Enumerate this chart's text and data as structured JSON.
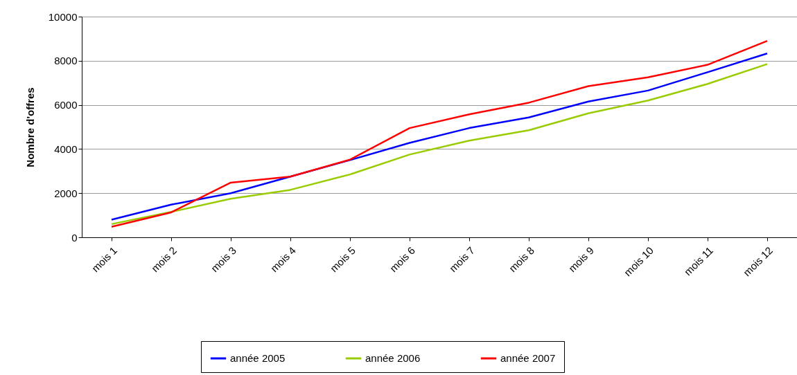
{
  "chart_data": {
    "type": "line",
    "ylabel": "Nombre d'offres",
    "categories": [
      "mois 1",
      "mois 2",
      "mois 3",
      "mois 4",
      "mois 5",
      "mois 6",
      "mois 7",
      "mois 8",
      "mois 9",
      "mois 10",
      "mois 11",
      "mois 12"
    ],
    "series": [
      {
        "name": "année 2005",
        "color": "#0000ff",
        "values": [
          800,
          1480,
          2000,
          2750,
          3500,
          4280,
          4950,
          5430,
          6150,
          6650,
          7480,
          8330
        ]
      },
      {
        "name": "année 2006",
        "color": "#99cc00",
        "values": [
          600,
          1150,
          1750,
          2150,
          2850,
          3750,
          4380,
          4850,
          5620,
          6200,
          6950,
          7850
        ]
      },
      {
        "name": "année 2007",
        "color": "#ff0000",
        "values": [
          480,
          1130,
          2480,
          2750,
          3520,
          4950,
          5570,
          6100,
          6850,
          7250,
          7820,
          8900
        ]
      }
    ],
    "ylim": [
      0,
      10000
    ],
    "yticks": [
      0,
      2000,
      4000,
      6000,
      8000,
      10000
    ],
    "grid": "y",
    "legend": "bottom",
    "marker": "none",
    "line_style": "solid"
  }
}
